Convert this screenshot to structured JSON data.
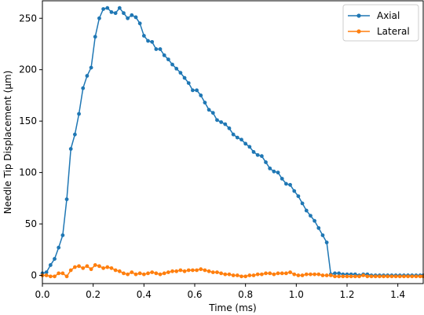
{
  "chart_data": {
    "type": "line",
    "xlabel": "Time (ms)",
    "ylabel": "Needle Tip Displacement (μm)",
    "xlim": [
      0,
      1.5
    ],
    "ylim": [
      -8,
      267
    ],
    "xticks": [
      "0.0",
      "0.2",
      "0.4",
      "0.6",
      "0.8",
      "1.0",
      "1.2",
      "1.4"
    ],
    "yticks": [
      "0",
      "50",
      "100",
      "150",
      "200",
      "250"
    ],
    "grid": false,
    "legend_position": "top-right",
    "series": [
      {
        "name": "Axial",
        "color": "#1f77b4",
        "marker": "circle",
        "x": [
          0.0,
          0.016,
          0.032,
          0.048,
          0.064,
          0.08,
          0.096,
          0.112,
          0.128,
          0.144,
          0.16,
          0.176,
          0.192,
          0.208,
          0.224,
          0.24,
          0.256,
          0.272,
          0.288,
          0.304,
          0.32,
          0.336,
          0.352,
          0.368,
          0.384,
          0.4,
          0.416,
          0.432,
          0.448,
          0.464,
          0.48,
          0.496,
          0.512,
          0.528,
          0.544,
          0.56,
          0.576,
          0.592,
          0.608,
          0.624,
          0.64,
          0.656,
          0.672,
          0.688,
          0.704,
          0.72,
          0.736,
          0.752,
          0.768,
          0.784,
          0.8,
          0.816,
          0.832,
          0.848,
          0.864,
          0.88,
          0.896,
          0.912,
          0.928,
          0.944,
          0.96,
          0.976,
          0.992,
          1.008,
          1.024,
          1.04,
          1.056,
          1.072,
          1.088,
          1.104,
          1.12,
          1.136,
          1.152,
          1.168,
          1.184,
          1.2,
          1.216,
          1.232,
          1.248,
          1.264,
          1.28,
          1.296,
          1.312,
          1.328,
          1.344,
          1.36,
          1.376,
          1.392,
          1.408,
          1.424,
          1.44,
          1.456,
          1.472,
          1.488,
          1.5
        ],
        "values": [
          2,
          3,
          10,
          16,
          27,
          39,
          74,
          123,
          137,
          157,
          182,
          194,
          202,
          232,
          250,
          259,
          260,
          256,
          255,
          260,
          255,
          250,
          253,
          251,
          245,
          233,
          228,
          227,
          220,
          220,
          214,
          210,
          205,
          201,
          197,
          192,
          187,
          180,
          180,
          175,
          168,
          161,
          158,
          151,
          149,
          147,
          143,
          137,
          134,
          132,
          128,
          125,
          120,
          117,
          116,
          110,
          104,
          101,
          100,
          94,
          89,
          88,
          82,
          77,
          70,
          63,
          58,
          53,
          46,
          39,
          32,
          1,
          2,
          2,
          1,
          1,
          1,
          1,
          0,
          1,
          1,
          0,
          0,
          0,
          0,
          0,
          0,
          0,
          0,
          0,
          0,
          0,
          0,
          0,
          0
        ]
      },
      {
        "name": "Lateral",
        "color": "#ff7f0e",
        "marker": "circle",
        "x": [
          0.0,
          0.016,
          0.032,
          0.048,
          0.064,
          0.08,
          0.096,
          0.112,
          0.128,
          0.144,
          0.16,
          0.176,
          0.192,
          0.208,
          0.224,
          0.24,
          0.256,
          0.272,
          0.288,
          0.304,
          0.32,
          0.336,
          0.352,
          0.368,
          0.384,
          0.4,
          0.416,
          0.432,
          0.448,
          0.464,
          0.48,
          0.496,
          0.512,
          0.528,
          0.544,
          0.56,
          0.576,
          0.592,
          0.608,
          0.624,
          0.64,
          0.656,
          0.672,
          0.688,
          0.704,
          0.72,
          0.736,
          0.752,
          0.768,
          0.784,
          0.8,
          0.816,
          0.832,
          0.848,
          0.864,
          0.88,
          0.896,
          0.912,
          0.928,
          0.944,
          0.96,
          0.976,
          0.992,
          1.008,
          1.024,
          1.04,
          1.056,
          1.072,
          1.088,
          1.104,
          1.12,
          1.136,
          1.152,
          1.168,
          1.184,
          1.2,
          1.216,
          1.232,
          1.248,
          1.264,
          1.28,
          1.296,
          1.312,
          1.328,
          1.344,
          1.36,
          1.376,
          1.392,
          1.408,
          1.424,
          1.44,
          1.456,
          1.472,
          1.488,
          1.5
        ],
        "values": [
          0,
          0,
          -1,
          -1,
          2,
          2,
          -1,
          5,
          8,
          9,
          7,
          9,
          6,
          10,
          9,
          7,
          8,
          7,
          5,
          4,
          2,
          1,
          3,
          1,
          2,
          1,
          2,
          3,
          2,
          1,
          2,
          3,
          4,
          4,
          5,
          4,
          5,
          5,
          5,
          6,
          5,
          4,
          3,
          3,
          2,
          1,
          1,
          0,
          0,
          -1,
          -1,
          0,
          0,
          1,
          1,
          2,
          2,
          1,
          2,
          2,
          2,
          3,
          1,
          0,
          0,
          1,
          1,
          1,
          1,
          0,
          0,
          0,
          -1,
          -1,
          -1,
          -1,
          -1,
          -1,
          -1,
          0,
          -1,
          -1,
          -1,
          -1,
          -1,
          -1,
          -1,
          -1,
          -1,
          -1,
          -1,
          -1,
          -1,
          -1,
          -1
        ]
      }
    ]
  }
}
